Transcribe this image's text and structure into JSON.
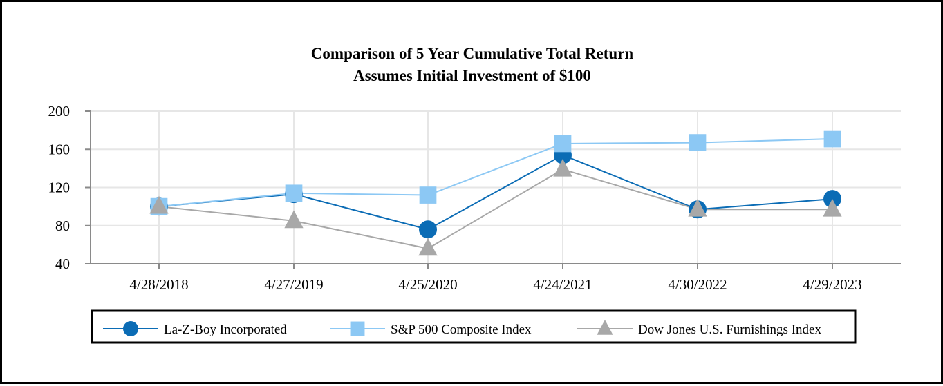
{
  "chart_data": {
    "type": "line",
    "title": "Comparison of 5 Year Cumulative Total Return",
    "subtitle": "Assumes Initial Investment of $100",
    "categories": [
      "4/28/2018",
      "4/27/2019",
      "4/25/2020",
      "4/24/2021",
      "4/30/2022",
      "4/29/2023"
    ],
    "ylim": [
      40,
      200
    ],
    "yticks": [
      40,
      80,
      120,
      160,
      200
    ],
    "grid": true,
    "legend_position": "bottom",
    "series": [
      {
        "name": "La-Z-Boy Incorporated",
        "marker": "circle",
        "color": "#0b6cb5",
        "values": [
          100,
          113,
          76,
          154,
          97,
          108
        ]
      },
      {
        "name": "S&P 500 Composite Index",
        "marker": "square",
        "color": "#8cc8f4",
        "values": [
          100,
          114,
          112,
          166,
          167,
          171
        ]
      },
      {
        "name": "Dow Jones U.S. Furnishings Index",
        "marker": "triangle",
        "color": "#a8a8a8",
        "values": [
          100,
          85,
          56,
          139,
          97,
          97
        ]
      }
    ]
  }
}
